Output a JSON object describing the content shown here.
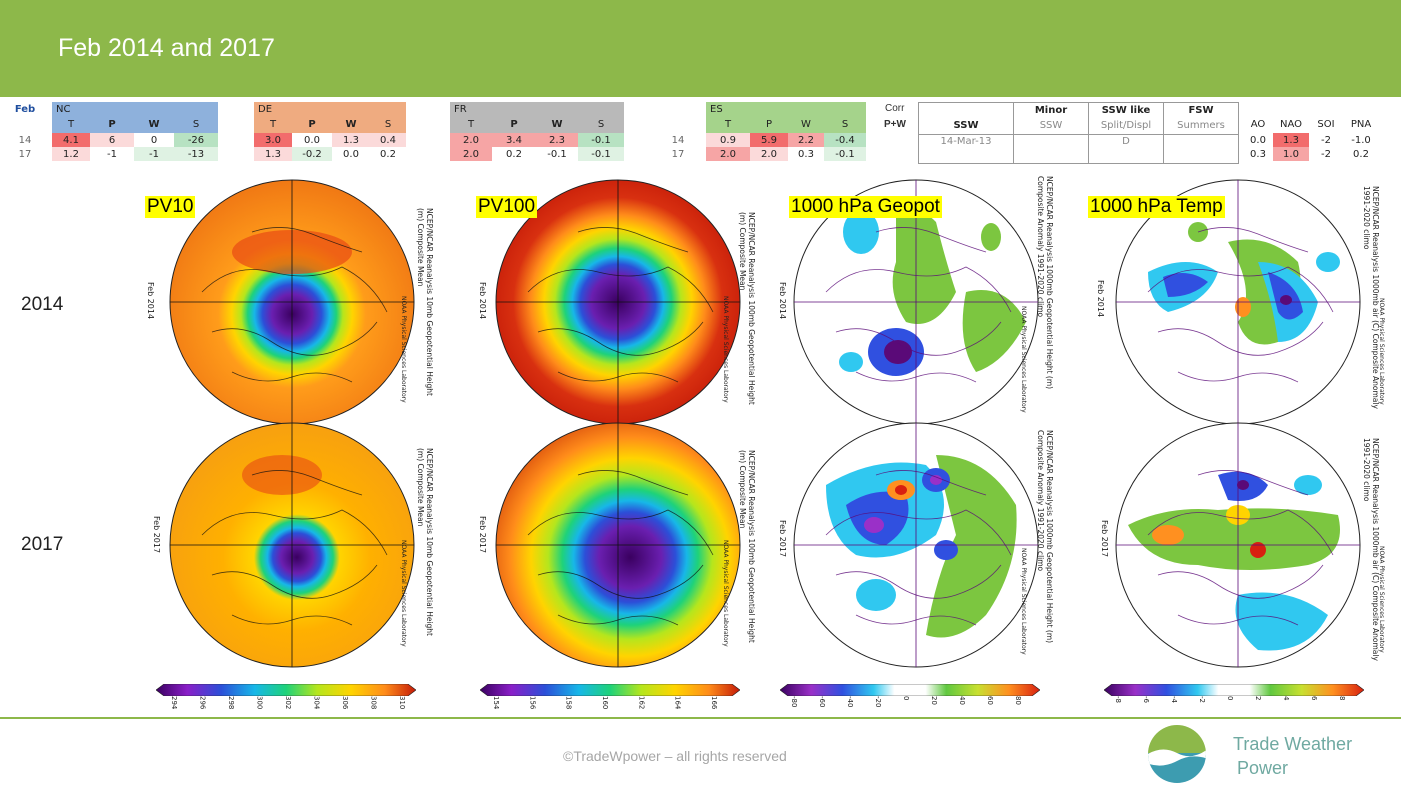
{
  "slide": {
    "title": "Feb 2014 and 2017"
  },
  "table": {
    "month_label": "Feb",
    "rows": [
      "14",
      "17"
    ],
    "nc": {
      "name": "NC",
      "cols": [
        "T",
        "P",
        "W",
        "S"
      ],
      "r14": [
        "4.1",
        "6",
        "0",
        "-26"
      ],
      "r17": [
        "1.2",
        "-1",
        "-1",
        "-13"
      ]
    },
    "de": {
      "name": "DE",
      "cols": [
        "T",
        "P",
        "W",
        "S"
      ],
      "r14": [
        "3.0",
        "0.0",
        "1.3",
        "0.4"
      ],
      "r17": [
        "1.3",
        "-0.2",
        "0.0",
        "0.2"
      ]
    },
    "fr": {
      "name": "FR",
      "cols": [
        "T",
        "P",
        "W",
        "S"
      ],
      "r14": [
        "2.0",
        "3.4",
        "2.3",
        "-0.1"
      ],
      "r17": [
        "2.0",
        "0.2",
        "-0.1",
        "-0.1"
      ]
    },
    "es": {
      "name": "ES",
      "cols": [
        "T",
        "P",
        "W",
        "S"
      ],
      "r14": [
        "0.9",
        "5.9",
        "2.2",
        "-0.4"
      ],
      "r17": [
        "2.0",
        "2.0",
        "0.3",
        "-0.1"
      ]
    },
    "corr_label": "Corr",
    "pw_label": "P+W",
    "ssw": {
      "h1": "",
      "h2": "SSW",
      "v14": "14-Mar-13"
    },
    "minor": {
      "h1": "Minor",
      "h2": "SSW",
      "v14": ""
    },
    "sswlike": {
      "h1": "SSW like",
      "h2": "Split/Displ",
      "v14": "D"
    },
    "fsw": {
      "h1": "FSW",
      "h2": "Summers",
      "v14": ""
    },
    "idx": {
      "cols": [
        "AO",
        "NAO",
        "SOI",
        "PNA"
      ],
      "r14": [
        "0.0",
        "1.3",
        "-2",
        "-1.0"
      ],
      "r17": [
        "0.3",
        "1.0",
        "-2",
        "0.2"
      ]
    }
  },
  "years": [
    "2014",
    "2017"
  ],
  "panels": {
    "pv10": {
      "label": "PV10",
      "side": "NCEP/NCAR Reanalysis 10mb Geopotential Height (m) Composite Mean",
      "lab": "NOAA Physical Sciences Laboratory",
      "date14": "Feb 2014",
      "date17": "Feb 2017",
      "ticks": [
        "294",
        "296",
        "298",
        "300",
        "302",
        "304",
        "306",
        "308",
        "310"
      ]
    },
    "pv100": {
      "label": "PV100",
      "side": "NCEP/NCAR Reanalysis 100mb Geopotential Height (m) Composite Mean",
      "lab": "NOAA Physical Sciences Laboratory",
      "date14": "Feb 2014",
      "date17": "Feb 2017",
      "ticks": [
        "154",
        "156",
        "158",
        "160",
        "162",
        "164",
        "166"
      ]
    },
    "geo": {
      "label": "1000 hPa Geopot",
      "side": "NCEP/NCAR Reanalysis 1000mb Geopotential Height (m) Composite Anomaly 1991-2020 climo",
      "lab": "NOAA Physical Sciences Laboratory",
      "date14": "Feb 2014",
      "date17": "Feb 2017",
      "ticks": [
        "-80",
        "-60",
        "-40",
        "-20",
        "0",
        "20",
        "40",
        "60",
        "80"
      ]
    },
    "temp": {
      "label": "1000 hPa Temp",
      "side": "NCEP/NCAR Reanalysis 1000mb air (C) Composite Anomaly 1991-2020 climo",
      "lab": "NOAA Physical Sciences Laboratory",
      "date14": "Feb 2014",
      "date17": "Feb 2017",
      "ticks": [
        "-8",
        "-6",
        "-4",
        "-2",
        "0",
        "2",
        "4",
        "6",
        "8"
      ]
    }
  },
  "footer": {
    "copyright": "©TradeWpower – all rights reserved",
    "brand_line1": "Trade Weather",
    "brand_line2": "Power"
  },
  "colors": {
    "header": "#8db84a",
    "brand": "#6fa9a1",
    "highlight": "#ffff00"
  }
}
